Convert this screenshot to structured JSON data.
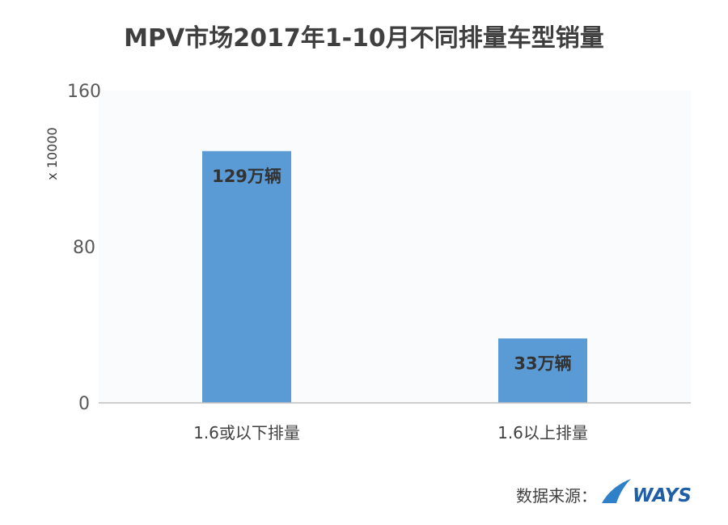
{
  "chart_data": {
    "type": "bar",
    "title": "MPV市场2017年1-10月不同排量车型销量",
    "categories": [
      "1.6或以下排量",
      "1.6以上排量"
    ],
    "values": [
      129,
      33
    ],
    "data_labels": [
      "129万辆",
      "33万辆"
    ],
    "ylim": [
      0,
      160
    ],
    "yticks": [
      "0",
      "80",
      "160"
    ],
    "y_multiplier_label": "x 10000",
    "grid": false,
    "bar_color": "#5b9bd5"
  },
  "footer": {
    "source_label": "数据来源：",
    "brand": "WAYS",
    "brand_color": "#1f5fa8",
    "logo_color": "#2f80c8"
  }
}
